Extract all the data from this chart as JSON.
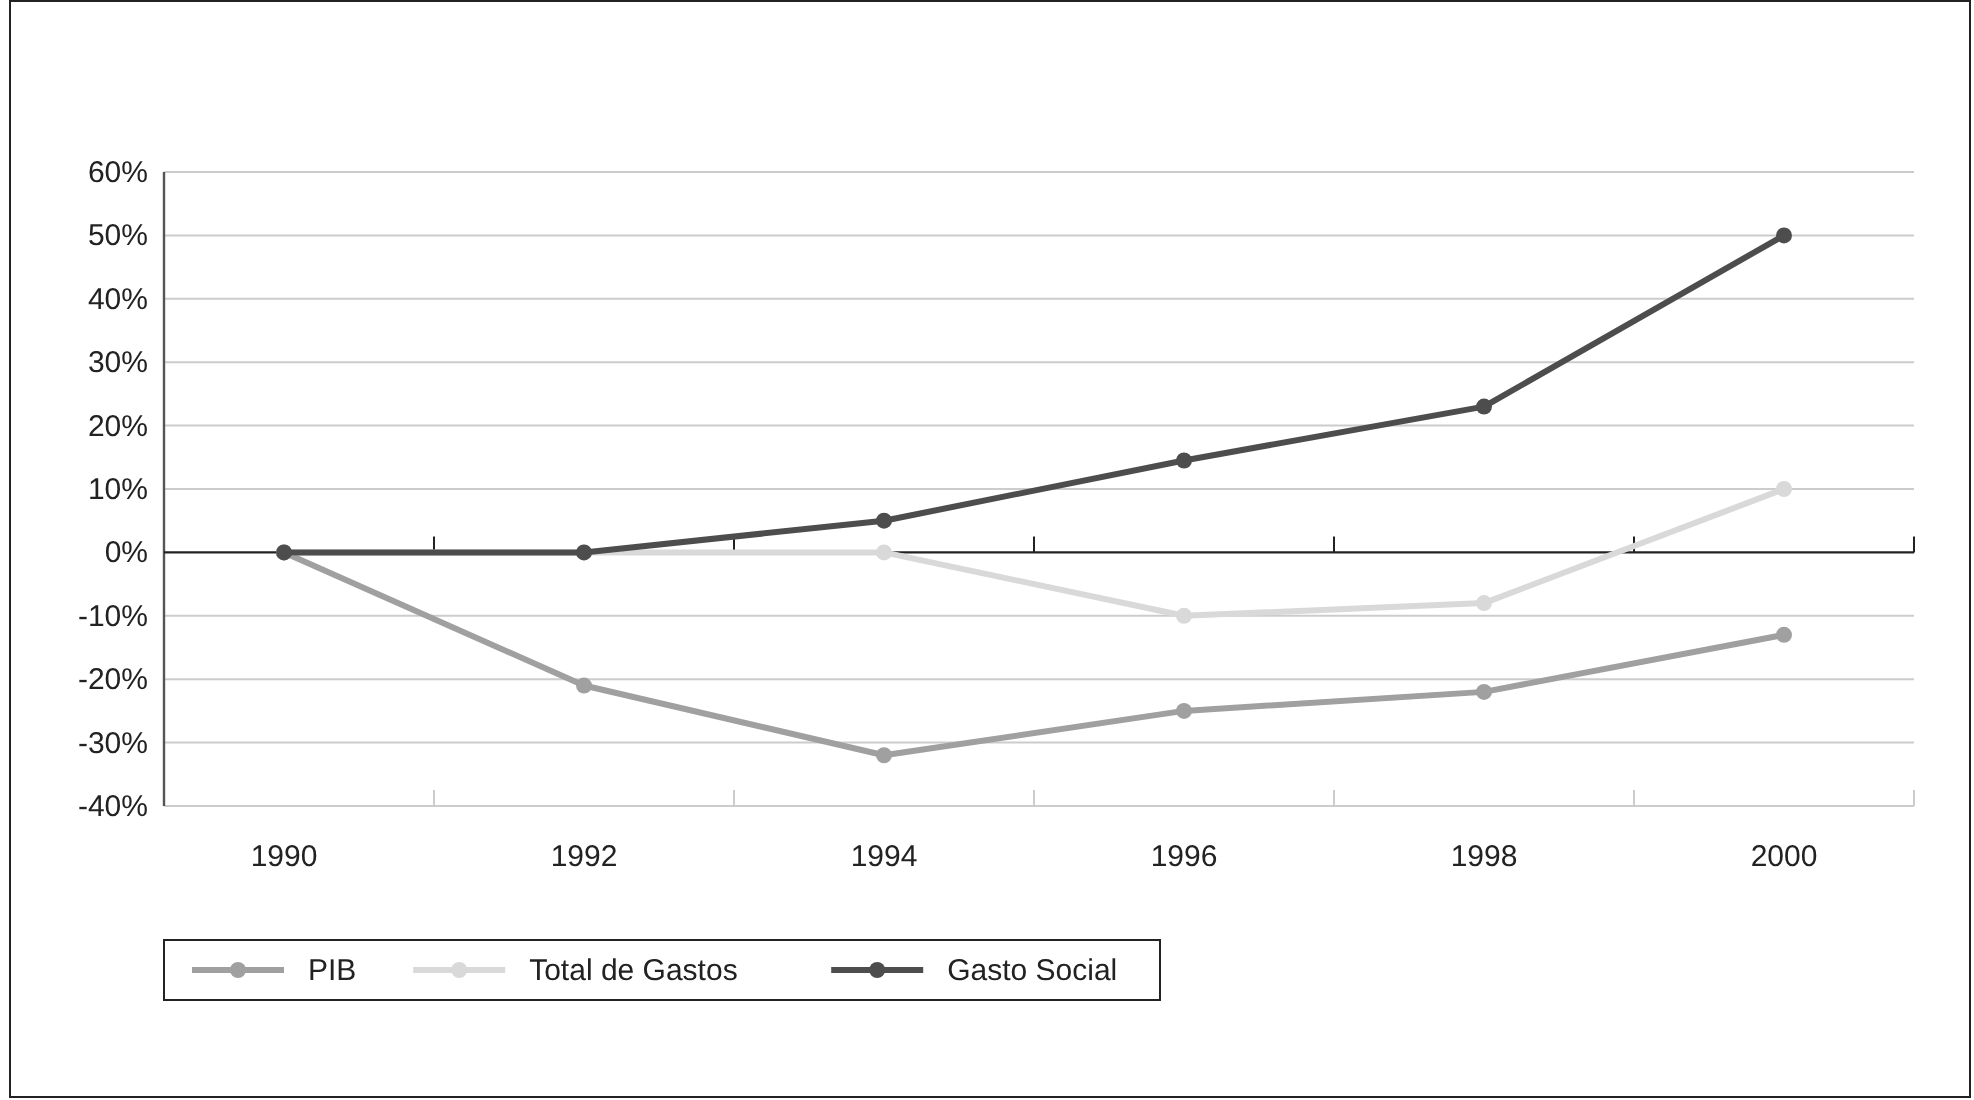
{
  "chart_data": {
    "type": "line",
    "categories": [
      "1990",
      "1992",
      "1994",
      "1996",
      "1998",
      "2000"
    ],
    "series": [
      {
        "name": "PIB",
        "color": "#a0a0a0",
        "values": [
          0,
          -21,
          -32,
          -25,
          -22,
          -13
        ]
      },
      {
        "name": "Total de Gastos",
        "color": "#d9d9d9",
        "values": [
          0,
          0,
          0,
          -10,
          -8,
          10
        ]
      },
      {
        "name": "Gasto Social",
        "color": "#4d4d4d",
        "values": [
          0,
          0,
          5,
          14.5,
          23,
          50
        ]
      }
    ],
    "ylim": [
      -40,
      60
    ],
    "yticks": [
      {
        "value": -40,
        "label": "-40%"
      },
      {
        "value": -30,
        "label": "-30%"
      },
      {
        "value": -20,
        "label": "-20%"
      },
      {
        "value": -10,
        "label": "-10%"
      },
      {
        "value": 0,
        "label": "0%"
      },
      {
        "value": 10,
        "label": "10%"
      },
      {
        "value": 20,
        "label": "20%"
      },
      {
        "value": 30,
        "label": "30%"
      },
      {
        "value": 40,
        "label": "40%"
      },
      {
        "value": 50,
        "label": "50%"
      },
      {
        "value": 60,
        "label": "60%"
      }
    ],
    "grid": "y",
    "legend": "bottom",
    "marker": "circle",
    "line_style": "solid"
  }
}
